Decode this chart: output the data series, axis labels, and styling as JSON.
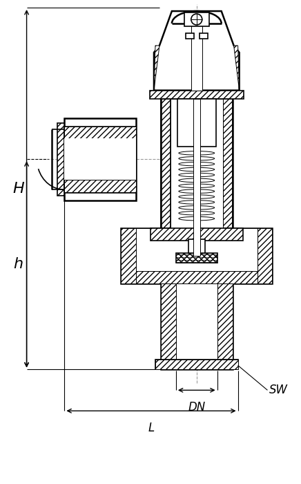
{
  "bg_color": "#ffffff",
  "line_color": "#000000",
  "lw_thick": 1.8,
  "lw_med": 1.2,
  "lw_thin": 0.7,
  "annotations": {
    "H": {
      "label": "H",
      "fontsize": 16,
      "style": "italic"
    },
    "h": {
      "label": "h",
      "fontsize": 16,
      "style": "italic"
    },
    "DN": {
      "label": "DN",
      "fontsize": 12,
      "style": "italic"
    },
    "L": {
      "label": "L",
      "fontsize": 12,
      "style": "italic"
    },
    "SW": {
      "label": "SW",
      "fontsize": 12,
      "style": "italic"
    }
  },
  "hatch_45": "////",
  "hatch_cross": "xxxx",
  "hatch_dot": "....",
  "centerline_color": "#aaaaaa",
  "centerline_ls": "--"
}
